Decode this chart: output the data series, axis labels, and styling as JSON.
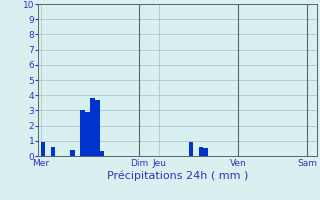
{
  "title": "",
  "xlabel": "Précipitations 24h ( mm )",
  "background_color": "#d8f0f0",
  "bar_color": "#0033cc",
  "grid_color": "#b0c8c8",
  "ylim": [
    0,
    10
  ],
  "yticks": [
    0,
    1,
    2,
    3,
    4,
    5,
    6,
    7,
    8,
    9,
    10
  ],
  "num_bars": 56,
  "bar_values": [
    0.9,
    0,
    0.6,
    0,
    0,
    0,
    0.4,
    0,
    3.0,
    2.9,
    3.8,
    3.7,
    0.3,
    0,
    0,
    0,
    0,
    0,
    0,
    0,
    0,
    0,
    0,
    0,
    0,
    0,
    0,
    0,
    0,
    0,
    0.9,
    0,
    0.6,
    0.5,
    0,
    0,
    0,
    0,
    0,
    0,
    0,
    0,
    0,
    0,
    0,
    0,
    0,
    0,
    0,
    0,
    0,
    0,
    0,
    0,
    0,
    0
  ],
  "day_labels": [
    "Mer",
    "Dim",
    "Jeu",
    "Ven",
    "Sam"
  ],
  "day_tick_positions": [
    0,
    20,
    24,
    40,
    54
  ],
  "vline_positions": [
    20,
    40,
    54
  ]
}
